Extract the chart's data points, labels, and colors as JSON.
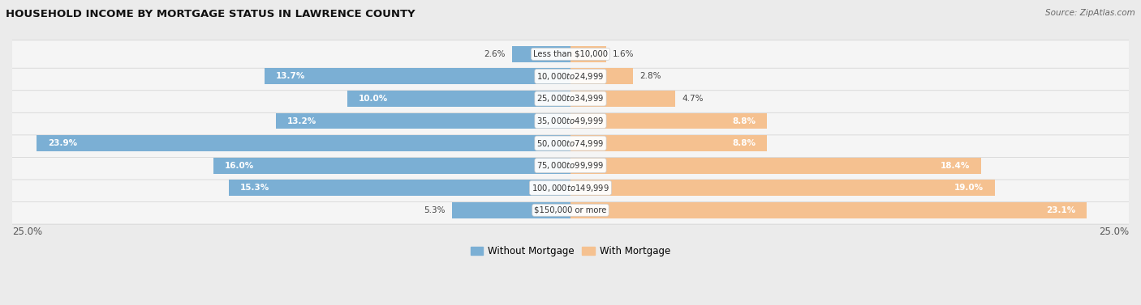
{
  "title": "HOUSEHOLD INCOME BY MORTGAGE STATUS IN LAWRENCE COUNTY",
  "source": "Source: ZipAtlas.com",
  "categories": [
    "Less than $10,000",
    "$10,000 to $24,999",
    "$25,000 to $34,999",
    "$35,000 to $49,999",
    "$50,000 to $74,999",
    "$75,000 to $99,999",
    "$100,000 to $149,999",
    "$150,000 or more"
  ],
  "without_mortgage": [
    2.6,
    13.7,
    10.0,
    13.2,
    23.9,
    16.0,
    15.3,
    5.3
  ],
  "with_mortgage": [
    1.6,
    2.8,
    4.7,
    8.8,
    8.8,
    18.4,
    19.0,
    23.1
  ],
  "color_without": "#7bafd4",
  "color_with": "#f5c190",
  "background_color": "#ebebeb",
  "row_bg_color": "#f5f5f5",
  "row_border_color": "#d0d0d0",
  "xlim": 25.0,
  "legend_label_without": "Without Mortgage",
  "legend_label_with": "With Mortgage",
  "axis_label": "25.0%"
}
